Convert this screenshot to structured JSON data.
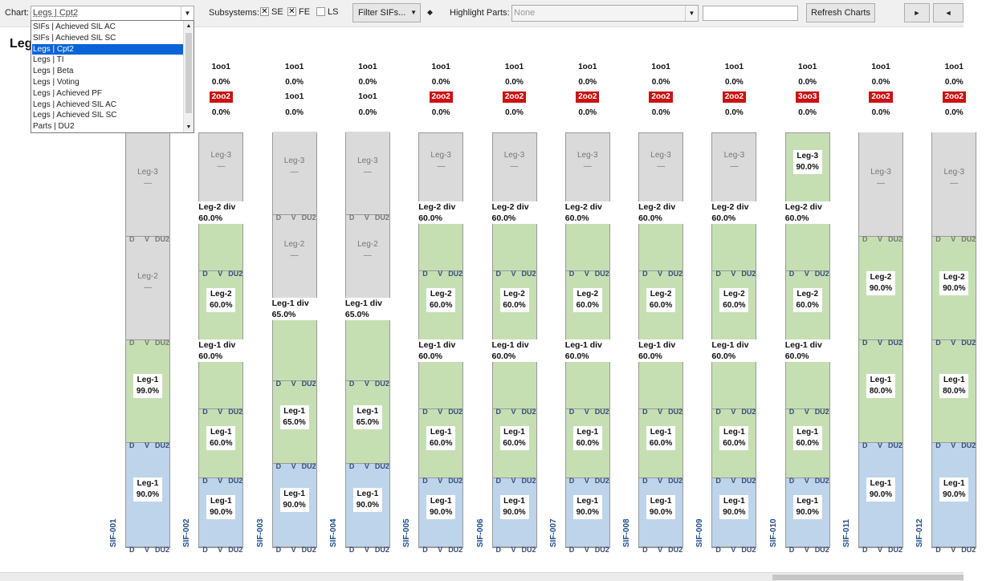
{
  "toolbar": {
    "chart_label": "Chart:",
    "chart_value": "Legs | Cpt2",
    "subsystems_label": "Subsystems:",
    "subsystems": [
      {
        "label": "SE",
        "checked": true
      },
      {
        "label": "FE",
        "checked": true
      },
      {
        "label": "LS",
        "checked": false
      }
    ],
    "filter_label": "Filter SIFs...",
    "diamond": "◆",
    "highlight_label": "Highlight Parts:",
    "highlight_value": "None",
    "search_value": "",
    "refresh_label": "Refresh Charts",
    "next_label": "►",
    "prev_label": "◄"
  },
  "chart_dropdown": {
    "items": [
      "SIFs | Achieved SIL AC",
      "SIFs | Achieved SIL SC",
      "Legs | Cpt2",
      "Legs | TI",
      "Legs | Beta",
      "Legs | Voting",
      "Legs | Achieved PF",
      "Legs | Achieved SIL AC",
      "Legs | Achieved SIL SC",
      "Parts | DU2"
    ],
    "selected_index": 2
  },
  "chart_title": "Leg",
  "footer_labels": {
    "d": "D",
    "v": "V",
    "du2": "DU2"
  },
  "chart_data": {
    "type": "bar",
    "sifs": [
      {
        "name": "SIF-001",
        "header": [
          "",
          "",
          "",
          ""
        ],
        "legs": [
          {
            "name": "Leg-1",
            "value": "90.0%",
            "color": "blue"
          },
          {
            "name": "Leg-1",
            "value": "99.0%",
            "color": "green"
          },
          {
            "name": "Leg-2",
            "value": "—",
            "color": "gray"
          },
          {
            "name": "Leg-3",
            "value": "—",
            "color": "gray"
          }
        ],
        "divs": []
      },
      {
        "name": "SIF-002",
        "header": [
          "1oo1",
          "0.0%",
          "2oo2",
          "0.0%"
        ],
        "legs": [
          {
            "name": "Leg-1",
            "value": "90.0%",
            "color": "blue"
          },
          {
            "name": "Leg-1",
            "value": "60.0%",
            "color": "green"
          },
          {
            "name": "Leg-1 div",
            "value": "60.0%",
            "color": "green"
          },
          {
            "name": "Leg-2",
            "value": "60.0%",
            "color": "green"
          },
          {
            "name": "Leg-2 div",
            "value": "60.0%",
            "color": "green"
          },
          {
            "name": "Leg-3",
            "value": "—",
            "color": "gray"
          }
        ]
      },
      {
        "name": "SIF-003",
        "header": [
          "1oo1",
          "0.0%",
          "1oo1",
          "0.0%"
        ],
        "legs": [
          {
            "name": "Leg-1",
            "value": "90.0%",
            "color": "blue"
          },
          {
            "name": "Leg-1",
            "value": "65.0%",
            "color": "green"
          },
          {
            "name": "Leg-1 div",
            "value": "65.0%",
            "color": "green"
          },
          {
            "name": "Leg-2",
            "value": "—",
            "color": "gray"
          },
          {
            "name": "Leg-3",
            "value": "—",
            "color": "gray"
          }
        ]
      },
      {
        "name": "SIF-004",
        "header": [
          "1oo1",
          "0.0%",
          "1oo1",
          "0.0%"
        ],
        "legs": [
          {
            "name": "Leg-1",
            "value": "90.0%",
            "color": "blue"
          },
          {
            "name": "Leg-1",
            "value": "65.0%",
            "color": "green"
          },
          {
            "name": "Leg-1 div",
            "value": "65.0%",
            "color": "green"
          },
          {
            "name": "Leg-2",
            "value": "—",
            "color": "gray"
          },
          {
            "name": "Leg-3",
            "value": "—",
            "color": "gray"
          }
        ]
      },
      {
        "name": "SIF-005",
        "header": [
          "1oo1",
          "0.0%",
          "2oo2",
          "0.0%"
        ],
        "legs": [
          {
            "name": "Leg-1",
            "value": "90.0%",
            "color": "blue"
          },
          {
            "name": "Leg-1",
            "value": "60.0%",
            "color": "green"
          },
          {
            "name": "Leg-1 div",
            "value": "60.0%",
            "color": "green"
          },
          {
            "name": "Leg-2",
            "value": "60.0%",
            "color": "green"
          },
          {
            "name": "Leg-2 div",
            "value": "60.0%",
            "color": "green"
          },
          {
            "name": "Leg-3",
            "value": "—",
            "color": "gray"
          }
        ]
      },
      {
        "name": "SIF-006",
        "header": [
          "1oo1",
          "0.0%",
          "2oo2",
          "0.0%"
        ],
        "legs": [
          {
            "name": "Leg-1",
            "value": "90.0%",
            "color": "blue"
          },
          {
            "name": "Leg-1",
            "value": "60.0%",
            "color": "green"
          },
          {
            "name": "Leg-1 div",
            "value": "60.0%",
            "color": "green"
          },
          {
            "name": "Leg-2",
            "value": "60.0%",
            "color": "green"
          },
          {
            "name": "Leg-2 div",
            "value": "60.0%",
            "color": "green"
          },
          {
            "name": "Leg-3",
            "value": "—",
            "color": "gray"
          }
        ]
      },
      {
        "name": "SIF-007",
        "header": [
          "1oo1",
          "0.0%",
          "2oo2",
          "0.0%"
        ],
        "legs": [
          {
            "name": "Leg-1",
            "value": "90.0%",
            "color": "blue"
          },
          {
            "name": "Leg-1",
            "value": "60.0%",
            "color": "green"
          },
          {
            "name": "Leg-1 div",
            "value": "60.0%",
            "color": "green"
          },
          {
            "name": "Leg-2",
            "value": "60.0%",
            "color": "green"
          },
          {
            "name": "Leg-2 div",
            "value": "60.0%",
            "color": "green"
          },
          {
            "name": "Leg-3",
            "value": "—",
            "color": "gray"
          }
        ]
      },
      {
        "name": "SIF-008",
        "header": [
          "1oo1",
          "0.0%",
          "2oo2",
          "0.0%"
        ],
        "legs": [
          {
            "name": "Leg-1",
            "value": "90.0%",
            "color": "blue"
          },
          {
            "name": "Leg-1",
            "value": "60.0%",
            "color": "green"
          },
          {
            "name": "Leg-1 div",
            "value": "60.0%",
            "color": "green"
          },
          {
            "name": "Leg-2",
            "value": "60.0%",
            "color": "green"
          },
          {
            "name": "Leg-2 div",
            "value": "60.0%",
            "color": "green"
          },
          {
            "name": "Leg-3",
            "value": "—",
            "color": "gray"
          }
        ]
      },
      {
        "name": "SIF-009",
        "header": [
          "1oo1",
          "0.0%",
          "2oo2",
          "0.0%"
        ],
        "legs": [
          {
            "name": "Leg-1",
            "value": "90.0%",
            "color": "blue"
          },
          {
            "name": "Leg-1",
            "value": "60.0%",
            "color": "green"
          },
          {
            "name": "Leg-1 div",
            "value": "60.0%",
            "color": "green"
          },
          {
            "name": "Leg-2",
            "value": "60.0%",
            "color": "green"
          },
          {
            "name": "Leg-2 div",
            "value": "60.0%",
            "color": "green"
          },
          {
            "name": "Leg-3",
            "value": "—",
            "color": "gray"
          }
        ]
      },
      {
        "name": "SIF-010",
        "header": [
          "1oo1",
          "0.0%",
          "3oo3",
          "0.0%"
        ],
        "legs": [
          {
            "name": "Leg-1",
            "value": "90.0%",
            "color": "blue"
          },
          {
            "name": "Leg-1",
            "value": "60.0%",
            "color": "green"
          },
          {
            "name": "Leg-1 div",
            "value": "60.0%",
            "color": "green"
          },
          {
            "name": "Leg-2",
            "value": "60.0%",
            "color": "green"
          },
          {
            "name": "Leg-2 div",
            "value": "60.0%",
            "color": "green"
          },
          {
            "name": "Leg-3",
            "value": "90.0%",
            "color": "green"
          }
        ]
      },
      {
        "name": "SIF-011",
        "header": [
          "1oo1",
          "0.0%",
          "2oo2",
          "0.0%"
        ],
        "legs": [
          {
            "name": "Leg-1",
            "value": "90.0%",
            "color": "blue"
          },
          {
            "name": "Leg-1",
            "value": "80.0%",
            "color": "green"
          },
          {
            "name": "Leg-2",
            "value": "90.0%",
            "color": "green"
          },
          {
            "name": "Leg-3",
            "value": "—",
            "color": "gray"
          }
        ]
      },
      {
        "name": "SIF-012",
        "header": [
          "1oo1",
          "0.0%",
          "2oo2",
          "0.0%"
        ],
        "legs": [
          {
            "name": "Leg-1",
            "value": "90.0%",
            "color": "blue"
          },
          {
            "name": "Leg-1",
            "value": "80.0%",
            "color": "green"
          },
          {
            "name": "Leg-2",
            "value": "90.0%",
            "color": "green"
          },
          {
            "name": "Leg-3",
            "value": "—",
            "color": "gray"
          }
        ]
      }
    ]
  }
}
